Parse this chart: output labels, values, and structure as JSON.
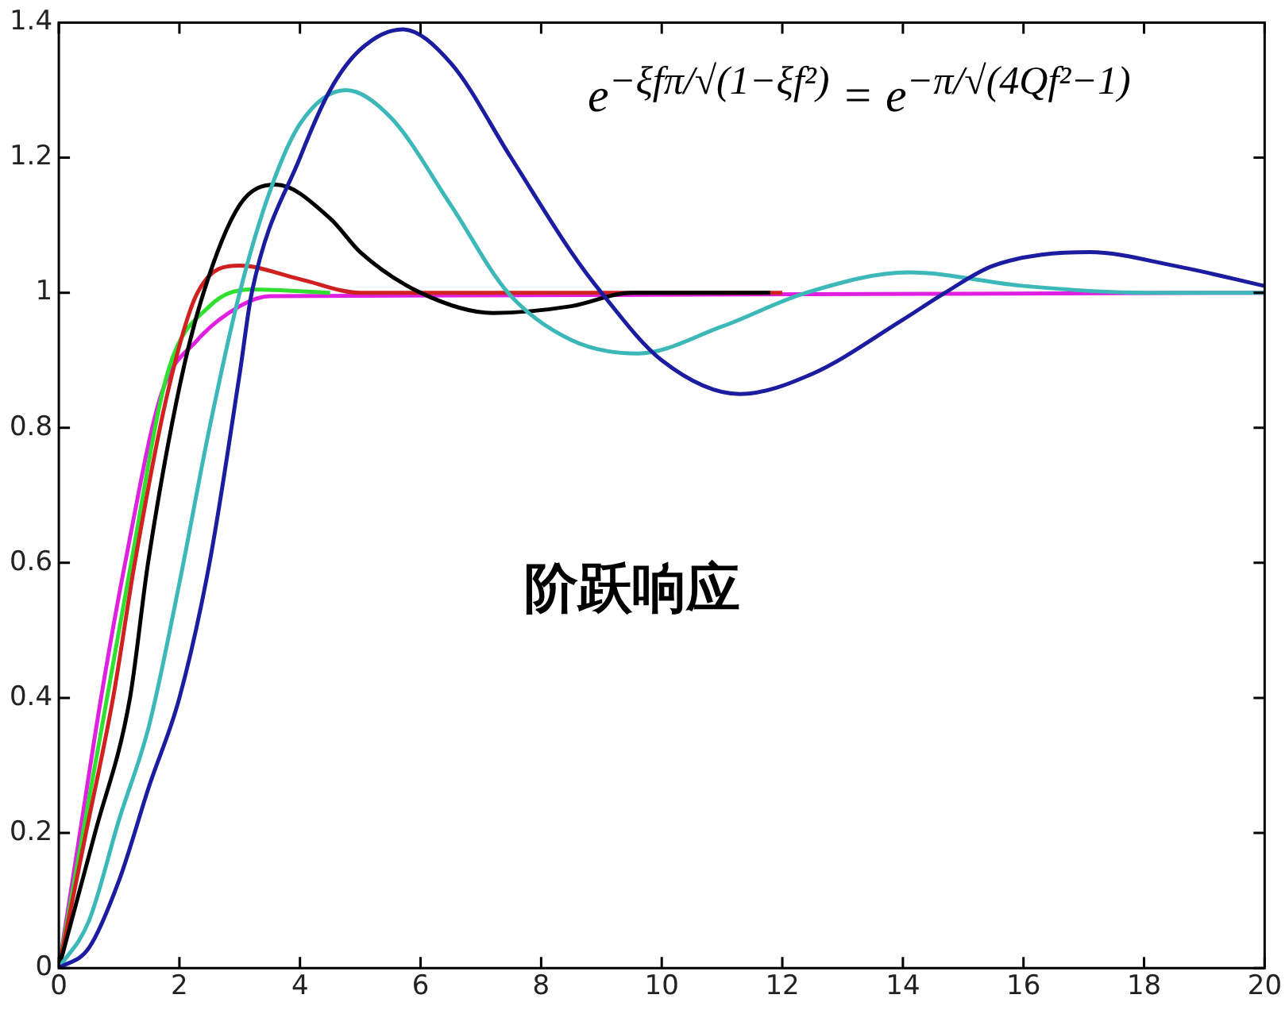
{
  "chart_data": {
    "type": "line",
    "xlim": [
      0,
      20
    ],
    "xticks": [
      0,
      2,
      4,
      6,
      8,
      10,
      12,
      14,
      16,
      18,
      20
    ],
    "ylim": [
      0,
      1.4
    ],
    "yticks": [
      0,
      0.2,
      0.4,
      0.6,
      0.8,
      1,
      1.2,
      1.4
    ],
    "legend": false,
    "marker": "none",
    "line_style": "solid",
    "annotations": [
      "e$^{−ξfπ/√(1−ξf²)}$ = e$^{−π/√(4Qf²−1)}$",
      "阶跃响应"
    ],
    "series": [
      {
        "color": "#1c1ca0",
        "x": [
          0,
          0.5,
          1,
          1.5,
          2,
          2.5,
          3,
          3.2,
          4,
          4.5,
          5,
          5.7,
          6.5,
          7.5,
          8.5,
          9,
          10,
          11.3,
          12.5,
          14,
          14.7,
          15.5,
          17.1,
          18.5,
          20
        ],
        "values": [
          0,
          0.03,
          0.13,
          0.27,
          0.4,
          0.6,
          0.88,
          1.0,
          1.2,
          1.3,
          1.36,
          1.39,
          1.34,
          1.2,
          1.06,
          1.0,
          0.9,
          0.85,
          0.88,
          0.96,
          1.0,
          1.04,
          1.06,
          1.04,
          1.01
        ]
      },
      {
        "color": "#3cb8b8",
        "x": [
          0,
          0.5,
          1,
          1.5,
          2,
          2.5,
          3,
          3.5,
          4,
          4.76,
          5.5,
          6.5,
          7.45,
          8.5,
          9.6,
          11,
          12.4,
          14.1,
          16,
          18,
          20
        ],
        "values": [
          0,
          0.07,
          0.22,
          0.36,
          0.57,
          0.8,
          1.0,
          1.15,
          1.25,
          1.3,
          1.26,
          1.13,
          1.0,
          0.93,
          0.91,
          0.95,
          1.0,
          1.03,
          1.01,
          1.0,
          1.0
        ]
      },
      {
        "color": "#000000",
        "x": [
          0,
          0.6,
          1.18,
          1.48,
          2,
          2.4,
          3,
          3.6,
          4.5,
          5,
          6,
          7.2,
          8.5,
          9.5,
          11.8
        ],
        "values": [
          0,
          0.2,
          0.4,
          0.6,
          0.86,
          1.0,
          1.13,
          1.16,
          1.11,
          1.06,
          1.0,
          0.97,
          0.98,
          1.0,
          1.0
        ]
      },
      {
        "color": "#d02020",
        "x": [
          0,
          0.45,
          0.9,
          1.26,
          1.8,
          2.3,
          3,
          4,
          5,
          12
        ],
        "values": [
          0,
          0.2,
          0.4,
          0.6,
          0.85,
          1.0,
          1.04,
          1.02,
          1.0,
          1.0
        ]
      },
      {
        "color": "#30e030",
        "x": [
          0,
          0.4,
          0.8,
          1.2,
          1.8,
          2.5,
          3.2,
          4.5
        ],
        "values": [
          0,
          0.2,
          0.4,
          0.6,
          0.88,
          0.98,
          1.005,
          1.0
        ]
      },
      {
        "color": "#e020e0",
        "x": [
          0,
          0.35,
          0.7,
          1.1,
          1.7,
          2.3,
          3,
          3.5,
          20
        ],
        "values": [
          0,
          0.2,
          0.4,
          0.6,
          0.85,
          0.93,
          0.98,
          0.995,
          1.0
        ]
      }
    ]
  }
}
